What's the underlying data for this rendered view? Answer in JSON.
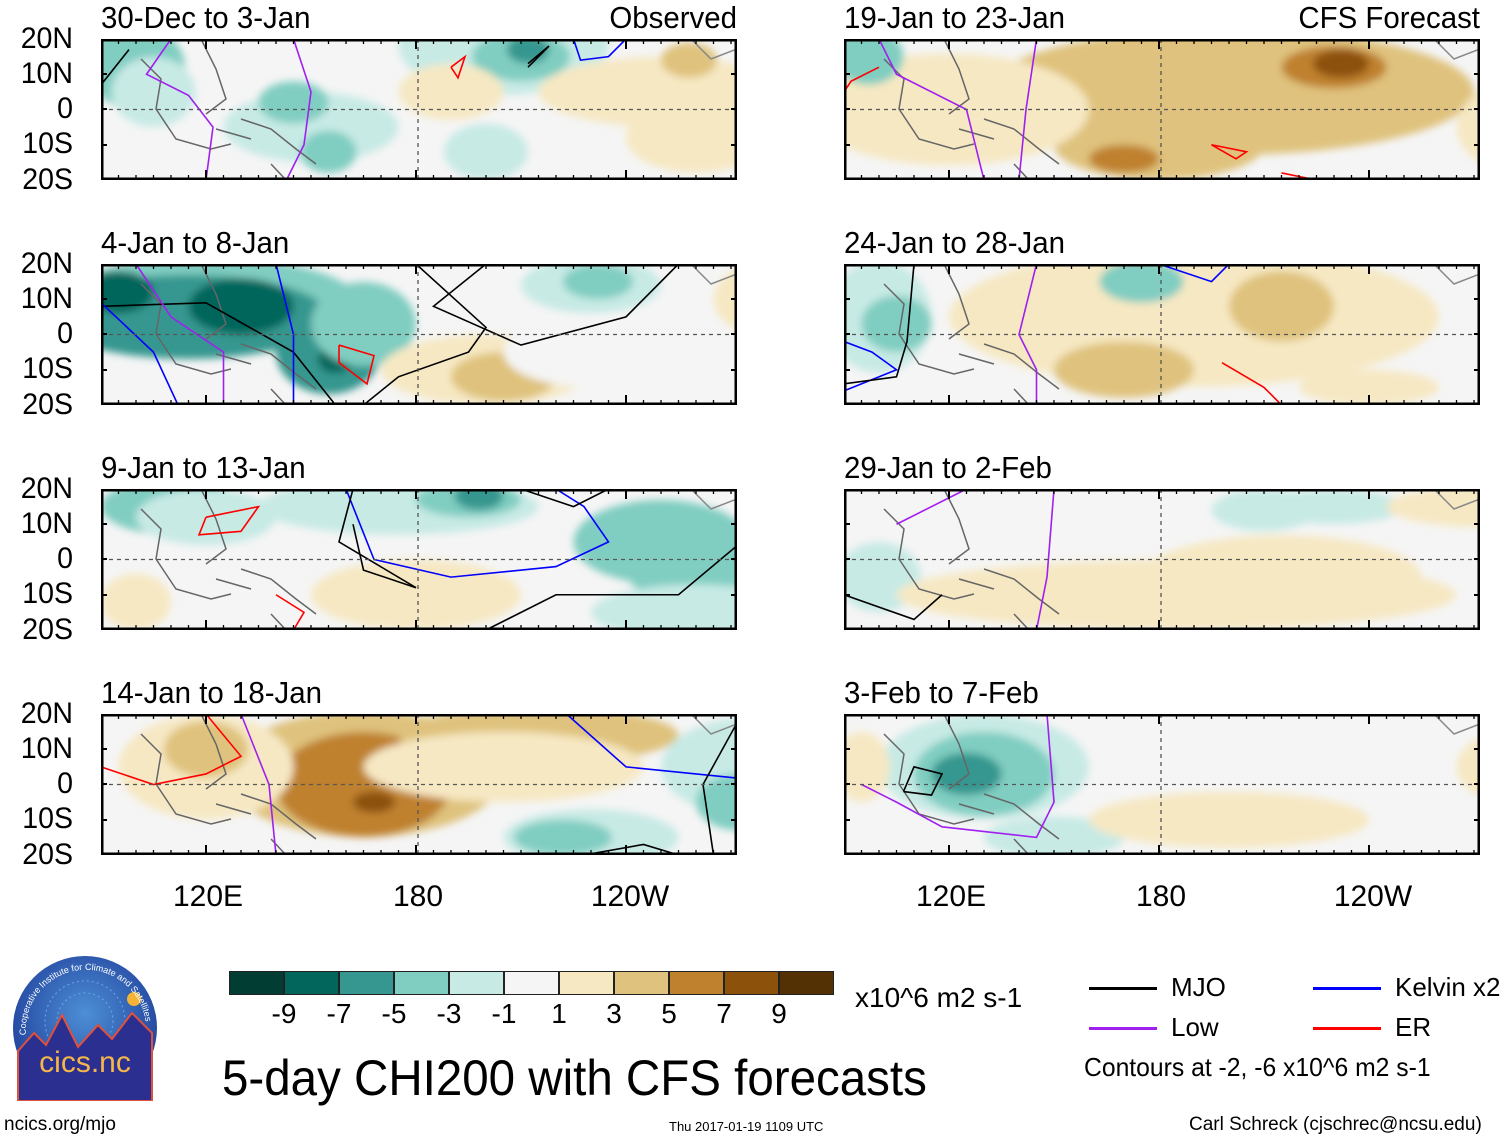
{
  "panels": [
    {
      "title": "30-Dec to 3-Jan",
      "tag": "Observed"
    },
    {
      "title": "4-Jan to 8-Jan"
    },
    {
      "title": "9-Jan to 13-Jan"
    },
    {
      "title": "14-Jan to 18-Jan"
    },
    {
      "title": "19-Jan to 23-Jan",
      "tag": "CFS Forecast"
    },
    {
      "title": "24-Jan to 28-Jan"
    },
    {
      "title": "29-Jan to 2-Feb"
    },
    {
      "title": "3-Feb to 7-Feb"
    }
  ],
  "y_axis": [
    "20N",
    "10N",
    "0",
    "10S",
    "20S"
  ],
  "x_axis": [
    "120E",
    "180",
    "120W"
  ],
  "colorbar": {
    "colors": [
      "#013d33",
      "#02665c",
      "#35978f",
      "#80cdc1",
      "#c7eae5",
      "#f5f5f5",
      "#f6e8c3",
      "#dfc27d",
      "#bf812d",
      "#8c510a",
      "#543005"
    ],
    "labels": [
      "-9",
      "-7",
      "-5",
      "-3",
      "-1",
      "1",
      "3",
      "5",
      "7",
      "9"
    ],
    "units": "x10^6 m2 s-1"
  },
  "legend": [
    {
      "label": "MJO",
      "color": "#000000"
    },
    {
      "label": "Kelvin x2",
      "color": "#0000ff"
    },
    {
      "label": "Low",
      "color": "#a020f0"
    },
    {
      "label": "ER",
      "color": "#ff0000"
    }
  ],
  "contours_note": "Contours at -2, -6 x10^6 m2 s-1",
  "main_title": "5-day CHI200 with CFS forecasts",
  "logo_text": "cics.nc",
  "logo_ring_text": "Cooperative Institute for Climate and Satellites",
  "footer": {
    "left": "ncics.org/mjo",
    "center": "Thu 2017-01-19 1109 UTC",
    "right": "Carl Schreck (cjschrec@ncsu.edu)"
  }
}
